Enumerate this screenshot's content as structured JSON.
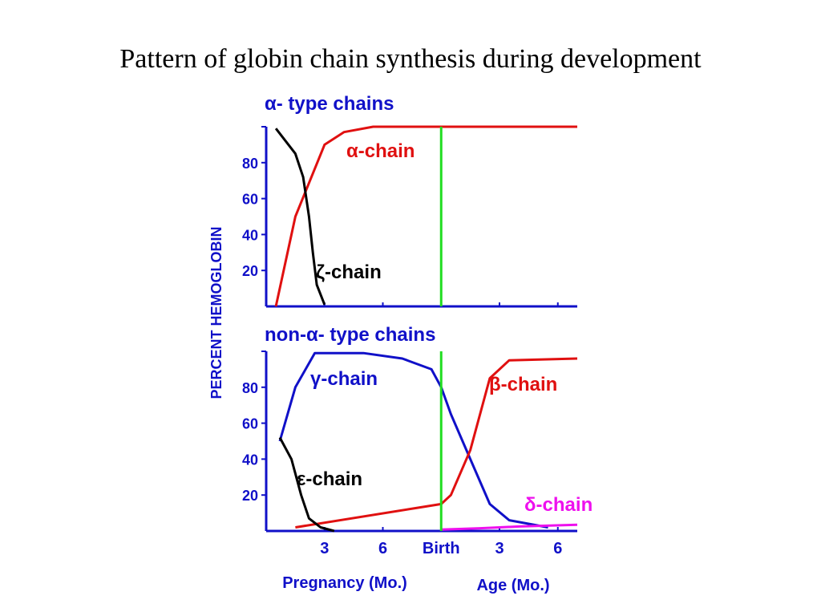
{
  "title": "Pattern of globin chain synthesis during development",
  "colors": {
    "axis": "#1010c8",
    "blue": "#1010c8",
    "red": "#e01010",
    "black": "#000000",
    "green": "#20dd20",
    "magenta": "#ee10ee"
  },
  "ylabel": "PERCENT HEMOGLOBIN",
  "xaxis": {
    "tick_labels": [
      "3",
      "6",
      "Birth",
      "3",
      "6"
    ],
    "pregnancy_label": "Pregnancy (Mo.)",
    "age_label": "Age (Mo.)"
  },
  "chart_data": [
    {
      "type": "line",
      "title": "α- type chains",
      "y_ticks": [
        "80",
        "60",
        "40",
        "20"
      ],
      "ylim": [
        0,
        100
      ],
      "xlim": [
        0,
        16
      ],
      "birth_x": 9,
      "series": [
        {
          "name": "α-chain",
          "color": "#e01010",
          "points": [
            [
              0.5,
              0
            ],
            [
              1.5,
              50
            ],
            [
              3,
              90
            ],
            [
              4,
              97
            ],
            [
              5.5,
              100
            ],
            [
              16,
              100
            ]
          ]
        },
        {
          "name": "ζ-chain",
          "color": "#000000",
          "points": [
            [
              0.5,
              99
            ],
            [
              1.5,
              85
            ],
            [
              1.9,
              72
            ],
            [
              2.2,
              50
            ],
            [
              2.4,
              30
            ],
            [
              2.6,
              12
            ],
            [
              3,
              1
            ]
          ]
        }
      ],
      "labels": {
        "alpha": "α-chain",
        "zeta": "ζ-chain"
      }
    },
    {
      "type": "line",
      "title": "non-α- type chains",
      "y_ticks": [
        "80",
        "60",
        "40",
        "20"
      ],
      "ylim": [
        0,
        100
      ],
      "xlim": [
        0,
        16
      ],
      "birth_x": 9,
      "series": [
        {
          "name": "γ-chain",
          "color": "#1010c8",
          "points": [
            [
              0.7,
              50
            ],
            [
              1.5,
              80
            ],
            [
              2.5,
              99
            ],
            [
              5,
              99
            ],
            [
              7,
              96
            ],
            [
              8.5,
              90
            ],
            [
              9,
              80
            ],
            [
              9.5,
              65
            ],
            [
              10.5,
              40
            ],
            [
              11.5,
              15
            ],
            [
              12.5,
              6
            ],
            [
              14.5,
              2
            ]
          ]
        },
        {
          "name": "β-chain",
          "color": "#e01010",
          "points": [
            [
              1.5,
              2
            ],
            [
              9,
              15
            ],
            [
              9.5,
              20
            ],
            [
              10.5,
              45
            ],
            [
              11.5,
              85
            ],
            [
              12.5,
              95
            ],
            [
              16,
              96
            ]
          ]
        },
        {
          "name": "ε-chain",
          "color": "#000000",
          "points": [
            [
              0.7,
              52
            ],
            [
              1.3,
              40
            ],
            [
              1.8,
              20
            ],
            [
              2.2,
              7
            ],
            [
              2.8,
              2
            ],
            [
              3.5,
              0
            ]
          ]
        },
        {
          "name": "δ-chain",
          "color": "#ee10ee",
          "points": [
            [
              9,
              0.8
            ],
            [
              11,
              1.5
            ],
            [
              13,
              2.5
            ],
            [
              16,
              3.5
            ]
          ]
        }
      ],
      "labels": {
        "gamma": "γ-chain",
        "beta": "β-chain",
        "epsilon": "ε-chain",
        "delta": "δ-chain"
      }
    }
  ]
}
